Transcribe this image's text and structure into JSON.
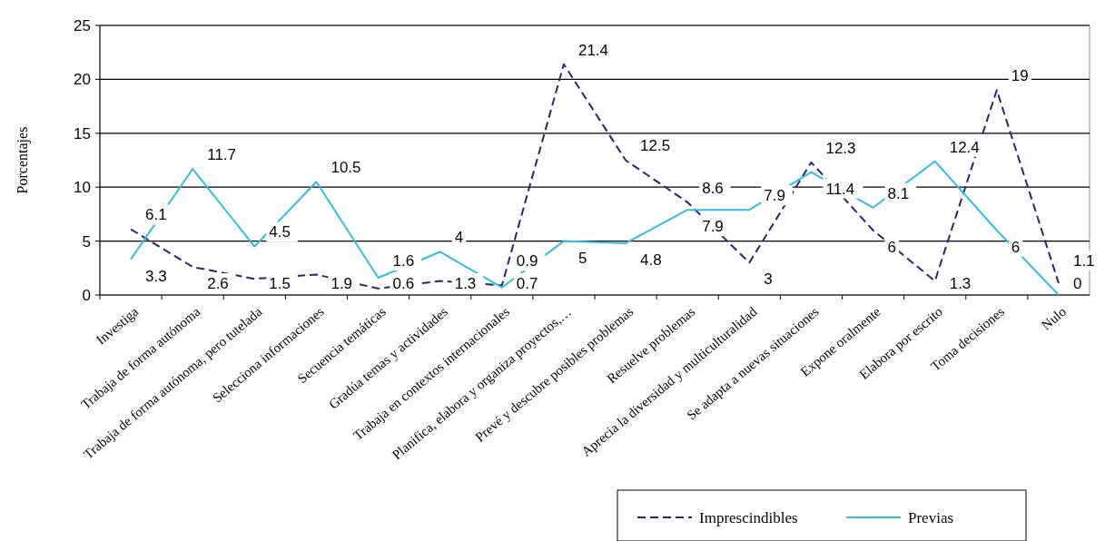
{
  "chart_data": {
    "type": "line",
    "ylabel": "Porcentajes",
    "categories": [
      "Investiga",
      "Trabaja de forma autónoma",
      "Trabaja de forma autónoma, pero tutelada",
      "Selecciona informaciones",
      "Secuencia temáticas",
      "Gradúa temas y actividades",
      "Trabaja en contextos internacionales",
      "Planifica, elabora y organiza proyectos,…",
      "Prevé y descubre posibles problemas",
      "Resuelve problemas",
      "Aprecia la diversidad y multiculturalidad",
      "Se adapta a nuevas situaciones",
      "Expone oralmente",
      "Elabora por escrito",
      "Toma decisiones",
      "Nulo"
    ],
    "series": [
      {
        "name": "Imprescindibles",
        "color": "#26266e",
        "line_style": "dashed",
        "values": [
          6.1,
          2.6,
          1.5,
          1.9,
          0.6,
          1.3,
          0.9,
          21.4,
          12.5,
          8.6,
          3,
          12.3,
          6,
          1.3,
          19,
          1.1
        ]
      },
      {
        "name": "Previas",
        "color": "#33bde0",
        "line_style": "solid",
        "values": [
          3.3,
          11.7,
          4.5,
          10.5,
          1.6,
          4,
          0.7,
          5,
          4.8,
          7.9,
          7.9,
          11.4,
          8.1,
          12.4,
          6,
          0
        ]
      }
    ],
    "ylim": [
      0,
      25
    ],
    "yticks": [
      0,
      5,
      10,
      15,
      20,
      25
    ],
    "grid": "y",
    "legend": "bottom right",
    "marker": "none",
    "data_labels": true
  }
}
